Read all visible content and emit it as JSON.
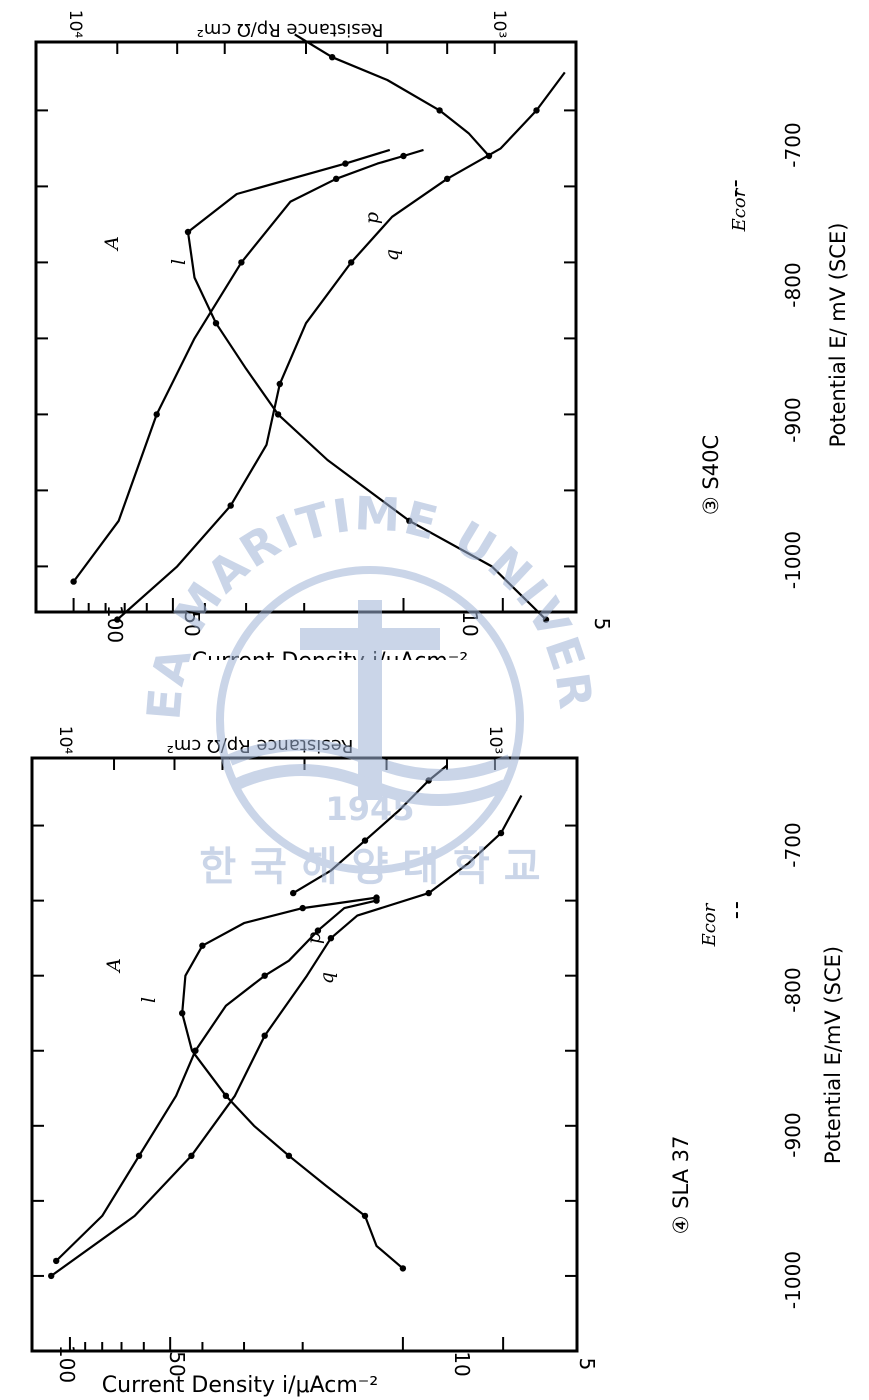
{
  "watermark": {
    "arc_text": "KOREA MARITIME UNIVERSITY",
    "year": "1945",
    "korean_text": "한 국 해 양 대 학 교",
    "color": "#9fb3d6"
  },
  "chart_data": [
    {
      "type": "line",
      "orientation": "rotated-90",
      "specimen_label": "③ S40C",
      "xlabel": "Potential E/ mV (SCE)",
      "ylabel": "Current Density i/μAcm⁻²",
      "y2label": "Resistance Rp/Ω cm²",
      "xlim": [
        -1030,
        -655
      ],
      "ylim": [
        3,
        130
      ],
      "y2lim": [
        100,
        10000
      ],
      "xticks": [
        -1000,
        -900,
        -800,
        -700
      ],
      "yticks": [
        100,
        50,
        10,
        5
      ],
      "y2ticks": [
        "10⁴",
        "10³"
      ],
      "ecor_label": "Ecor",
      "ecor": -750,
      "annotations": [
        "A",
        "l",
        "p",
        "q"
      ],
      "series": [
        {
          "role": "current-density-left",
          "points": [
            [
              -1010,
              100
            ],
            [
              -970,
              73
            ],
            [
              -900,
              56
            ],
            [
              -850,
              43
            ],
            [
              -800,
              31
            ],
            [
              -760,
              22
            ],
            [
              -745,
              16
            ],
            [
              -735,
              12
            ],
            [
              -730,
              10
            ],
            [
              -726,
              8.7
            ]
          ]
        },
        {
          "role": "current-density-right",
          "points": [
            [
              -1035,
              3.7
            ],
            [
              -1000,
              5.4
            ],
            [
              -970,
              9.6
            ],
            [
              -930,
              17
            ],
            [
              -900,
              24
            ],
            [
              -870,
              30
            ],
            [
              -840,
              37
            ],
            [
              -810,
              43
            ],
            [
              -780,
              45
            ],
            [
              -755,
              32
            ],
            [
              -735,
              15
            ],
            [
              -726,
              11
            ]
          ]
        },
        {
          "role": "resistance",
          "points": [
            [
              -1035,
              5000
            ],
            [
              -1000,
              3000
            ],
            [
              -960,
              1900
            ],
            [
              -920,
              1400
            ],
            [
              -880,
              1250
            ],
            [
              -840,
              1000
            ],
            [
              -800,
              680
            ],
            [
              -770,
              480
            ],
            [
              -745,
              300
            ],
            [
              -725,
              190
            ],
            [
              -700,
              140
            ],
            [
              -675,
              110
            ]
          ]
        },
        {
          "role": "resistance-steep",
          "points": [
            [
              -730,
              210
            ],
            [
              -715,
              250
            ],
            [
              -700,
              320
            ],
            [
              -680,
              500
            ],
            [
              -665,
              800
            ],
            [
              -650,
              1100
            ]
          ]
        }
      ]
    },
    {
      "type": "line",
      "orientation": "rotated-90",
      "specimen_label": "④ SLA 37",
      "xlabel": "Potential E/mV (SCE)",
      "ylabel": "Current Density i/μAcm⁻²",
      "y2label": "Resistance Rp/Ω cm²",
      "xlim": [
        -1050,
        -655
      ],
      "ylim": [
        3,
        130
      ],
      "y2lim": [
        100,
        10000
      ],
      "xticks": [
        -1000,
        -900,
        -800,
        -700
      ],
      "yticks": [
        100,
        50,
        10,
        5
      ],
      "y2ticks": [
        "10⁴",
        "10³"
      ],
      "ecor_label": "Ecor",
      "ecor": -755,
      "annotations": [
        "A",
        "l",
        "p",
        "q"
      ],
      "series": [
        {
          "role": "current-density-left",
          "points": [
            [
              -990,
              110
            ],
            [
              -960,
              80
            ],
            [
              -920,
              62
            ],
            [
              -880,
              48
            ],
            [
              -850,
              42
            ],
            [
              -820,
              34
            ],
            [
              -800,
              26
            ],
            [
              -790,
              22
            ],
            [
              -770,
              18
            ],
            [
              -755,
              15
            ],
            [
              -750,
              12
            ]
          ]
        },
        {
          "role": "current-density-right",
          "points": [
            [
              -995,
              10
            ],
            [
              -980,
              12
            ],
            [
              -960,
              13
            ],
            [
              -940,
              17
            ],
            [
              -920,
              22
            ],
            [
              -900,
              28
            ],
            [
              -880,
              34
            ],
            [
              -850,
              43
            ],
            [
              -825,
              46
            ],
            [
              -800,
              45
            ],
            [
              -780,
              40
            ],
            [
              -765,
              30
            ],
            [
              -755,
              20
            ],
            [
              -752,
              16
            ],
            [
              -748,
              12
            ]
          ]
        },
        {
          "role": "resistance",
          "points": [
            [
              -1000,
              8500
            ],
            [
              -960,
              4200
            ],
            [
              -920,
              2600
            ],
            [
              -880,
              1800
            ],
            [
              -840,
              1400
            ],
            [
              -800,
              980
            ],
            [
              -775,
              800
            ],
            [
              -760,
              640
            ],
            [
              -745,
              350
            ],
            [
              -725,
              250
            ],
            [
              -705,
              190
            ],
            [
              -680,
              160
            ]
          ]
        },
        {
          "role": "resistance-steep",
          "points": [
            [
              -745,
              1100
            ],
            [
              -730,
              800
            ],
            [
              -710,
              600
            ],
            [
              -690,
              450
            ],
            [
              -670,
              350
            ],
            [
              -660,
              300
            ]
          ]
        }
      ]
    }
  ]
}
